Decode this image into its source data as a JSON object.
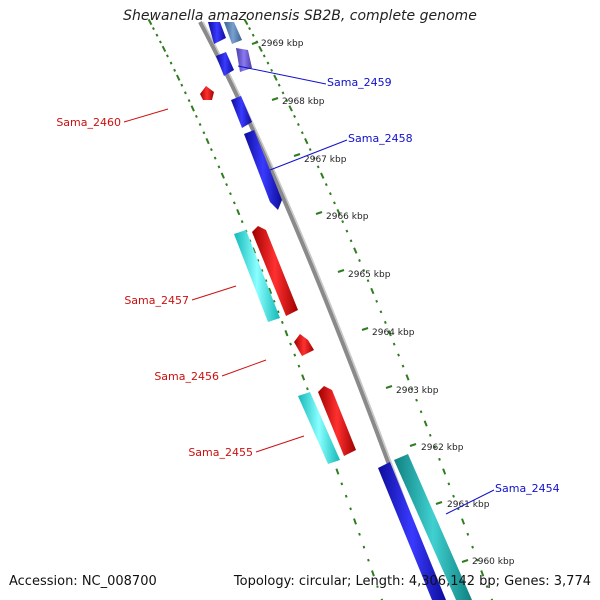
{
  "title": "Shewanella amazonensis SB2B, complete genome",
  "footer": {
    "accession": "Accession: NC_008700",
    "summary": "Topology: circular; Length: 4,306,142 bp; Genes: 3,774"
  },
  "colors": {
    "backbone": "#8a8a8a",
    "tick": "#2e7d1e",
    "forward_gene": "#1a1ae6",
    "forward_gene_alt": "#5a7fb8",
    "forward_gene_purple": "#6a5acd",
    "reverse_gene": "#e61a1a",
    "rna_gene": "#1ae6e6",
    "rna_gene_dark": "#1aa6a6",
    "forward_label": "#1010cc",
    "reverse_label": "#cc1010"
  },
  "kbp_ticks": [
    "2969 kbp",
    "2968 kbp",
    "2967 kbp",
    "2966 kbp",
    "2965 kbp",
    "2964 kbp",
    "2963 kbp",
    "2962 kbp",
    "2961 kbp",
    "2960 kbp"
  ],
  "gene_labels": {
    "forward": [
      "Sama_2459",
      "Sama_2458",
      "Sama_2454"
    ],
    "reverse": [
      "Sama_2460",
      "Sama_2457",
      "Sama_2456",
      "Sama_2455"
    ]
  }
}
